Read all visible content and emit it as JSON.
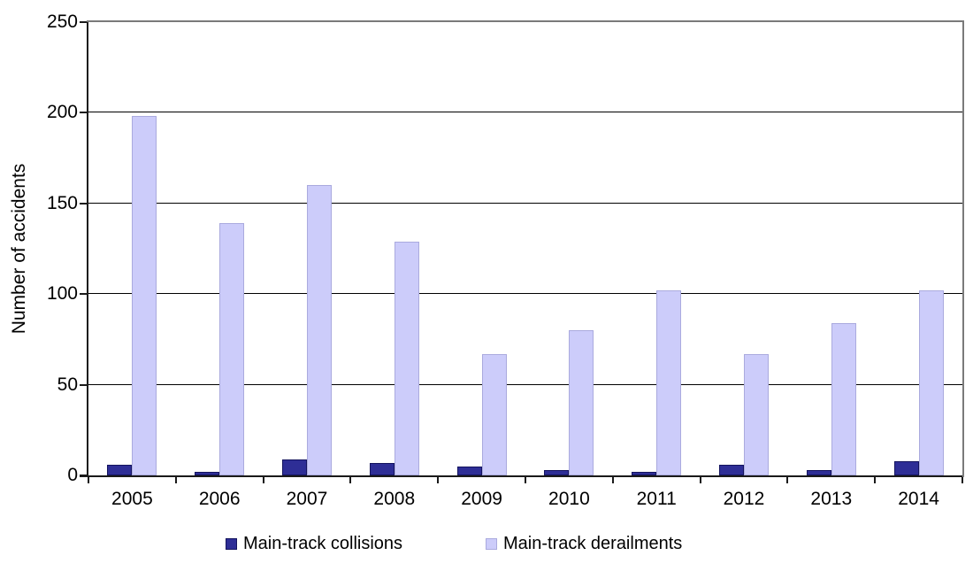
{
  "chart_data": {
    "type": "bar",
    "title": "",
    "xlabel": "",
    "ylabel": "Number of accidents",
    "categories": [
      "2005",
      "2006",
      "2007",
      "2008",
      "2009",
      "2010",
      "2011",
      "2012",
      "2013",
      "2014"
    ],
    "series": [
      {
        "name": "Main-track collisions",
        "color": "#2E2E96",
        "border_color": "#14145E",
        "values": [
          6,
          2,
          9,
          7,
          5,
          3,
          2,
          6,
          3,
          8
        ]
      },
      {
        "name": "Main-track derailments",
        "color": "#CCCCFA",
        "border_color": "#AAAADE",
        "values": [
          198,
          139,
          160,
          129,
          67,
          80,
          102,
          67,
          84,
          102
        ]
      }
    ],
    "ylim": [
      0,
      250
    ],
    "yticks": [
      0,
      50,
      100,
      150,
      200,
      250
    ],
    "grid": true,
    "legend_position": "bottom",
    "gridline_color": "#000000",
    "axis_color": "#1A1A1A",
    "plot_border_color": "#7A7A7A",
    "background_color": "#FFFFFF"
  }
}
